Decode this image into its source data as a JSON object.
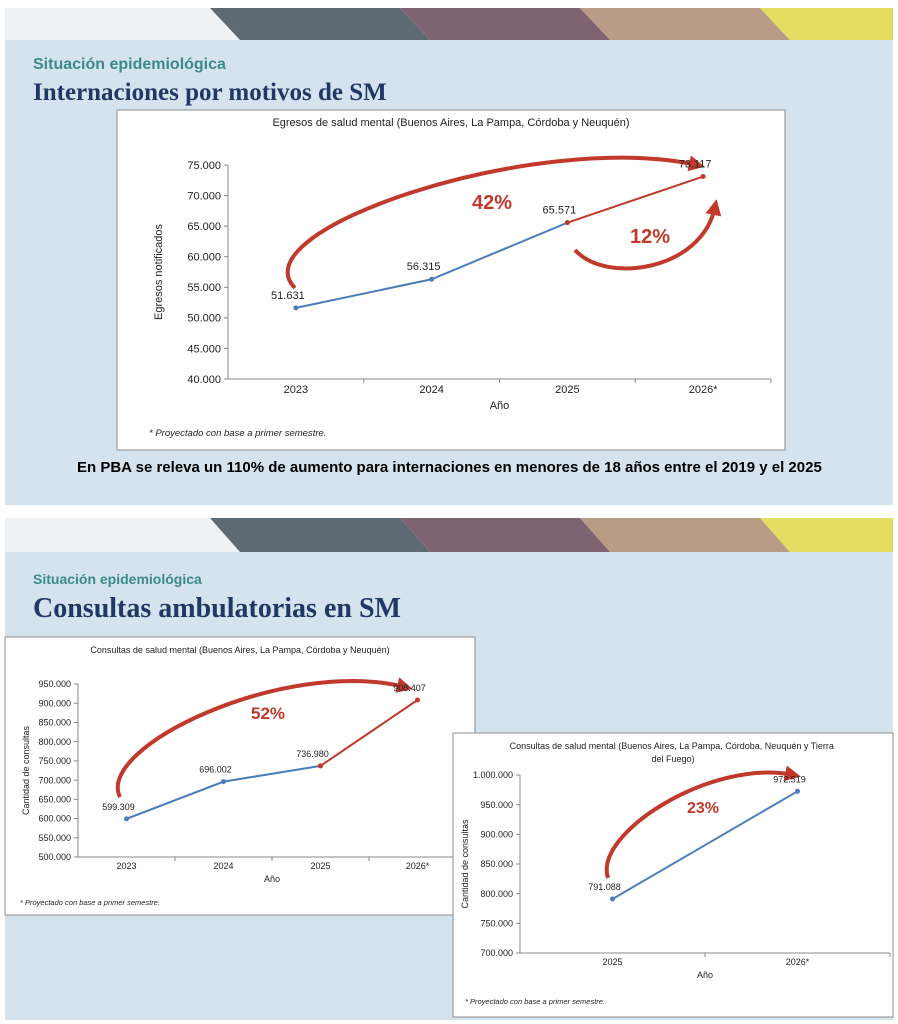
{
  "slides": [
    {
      "subtitle": "Situación epidemiológica",
      "title": "Internaciones por motivos de SM",
      "note": "En PBA se releva un 110% de aumento para internaciones en menores de 18 años entre el 2019 y el 2025"
    },
    {
      "subtitle": "Situación epidemiológica",
      "title": "Consultas ambulatorias en SM"
    }
  ],
  "chart_data": [
    {
      "type": "line",
      "title": "Egresos de salud mental (Buenos Aires, La Pampa, Córdoba y Neuquén)",
      "ylabel": "Egresos notificados",
      "xlabel": "Año",
      "footnote": "* Proyectado con base a primer semestre.",
      "categories": [
        "2023",
        "2024",
        "2025",
        "2026*"
      ],
      "series": [
        {
          "color": "#4a7ebb",
          "values": [
            51631,
            56315,
            65571,
            null
          ],
          "value_labels": [
            "51.631",
            "56.315",
            "65.571",
            null
          ]
        },
        {
          "color": "#c0392b",
          "values": [
            null,
            null,
            65571,
            73117
          ],
          "value_labels": [
            null,
            null,
            null,
            "73.117"
          ]
        }
      ],
      "ylim": [
        40000,
        75000
      ],
      "yticks": [
        {
          "value": 40000,
          "label": "40.000"
        },
        {
          "value": 45000,
          "label": "45.000"
        },
        {
          "value": 50000,
          "label": "50.000"
        },
        {
          "value": 55000,
          "label": "55.000"
        },
        {
          "value": 60000,
          "label": "60.000"
        },
        {
          "value": 65000,
          "label": "65.000"
        },
        {
          "value": 70000,
          "label": "70.000"
        },
        {
          "value": 75000,
          "label": "75.000"
        }
      ],
      "annotations": [
        "42%",
        "12%"
      ]
    },
    {
      "type": "line",
      "title": "Consultas de salud mental (Buenos Aires, La Pampa, Córdoba y Neuquén)",
      "ylabel": "Cantidad de consultas",
      "xlabel": "Año",
      "footnote": "* Proyectado con base a primer semestre.",
      "categories": [
        "2023",
        "2024",
        "2025",
        "2026*"
      ],
      "series": [
        {
          "color": "#4a7ebb",
          "values": [
            599309,
            696002,
            736980,
            null
          ],
          "value_labels": [
            "599.309",
            "696.002",
            "736.980",
            null
          ]
        },
        {
          "color": "#c0392b",
          "values": [
            null,
            null,
            736980,
            908407
          ],
          "value_labels": [
            null,
            null,
            null,
            "908.407"
          ]
        }
      ],
      "ylim": [
        500000,
        950000
      ],
      "yticks": [
        {
          "value": 500000,
          "label": "500.000"
        },
        {
          "value": 550000,
          "label": "550.000"
        },
        {
          "value": 600000,
          "label": "600.000"
        },
        {
          "value": 650000,
          "label": "650.000"
        },
        {
          "value": 700000,
          "label": "700.000"
        },
        {
          "value": 750000,
          "label": "750.000"
        },
        {
          "value": 800000,
          "label": "800.000"
        },
        {
          "value": 850000,
          "label": "850.000"
        },
        {
          "value": 900000,
          "label": "900.000"
        },
        {
          "value": 950000,
          "label": "950.000"
        }
      ],
      "annotations": [
        "52%"
      ]
    },
    {
      "type": "line",
      "title": "Consultas de salud mental (Buenos Aires, La Pampa, Córdoba, Neuquén y Tierra del Fuego)",
      "ylabel": "Cantidad de consultas",
      "xlabel": "Año",
      "footnote": "* Proyectado con base a primer semestre.",
      "categories": [
        "2025",
        "2026*"
      ],
      "series": [
        {
          "color": "#4a7ebb",
          "values": [
            791088,
            972519
          ],
          "value_labels": [
            "791.088",
            "972.519"
          ]
        }
      ],
      "ylim": [
        700000,
        1000000
      ],
      "yticks": [
        {
          "value": 700000,
          "label": "700.000"
        },
        {
          "value": 750000,
          "label": "750.000"
        },
        {
          "value": 800000,
          "label": "800.000"
        },
        {
          "value": 850000,
          "label": "850.000"
        },
        {
          "value": 900000,
          "label": "900.000"
        },
        {
          "value": 950000,
          "label": "950.000"
        },
        {
          "value": 1000000,
          "label": "1.000.000"
        }
      ],
      "annotations": [
        "23%"
      ]
    }
  ]
}
